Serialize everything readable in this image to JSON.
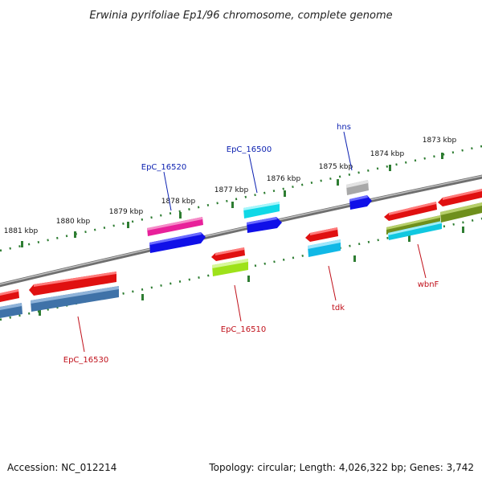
{
  "title": "Erwinia pyrifoliae Ep1/96 chromosome, complete genome",
  "footer": {
    "accession": "Accession: NC_012214",
    "summary": "Topology: circular; Length: 4,026,322 bp; Genes: 3,742"
  },
  "colors": {
    "backbone": "#7a7a7a",
    "ticks": "#2e7d32",
    "label_top": "#0a1fb0",
    "label_bottom": "#c0101a"
  },
  "scale": {
    "ticks": [
      {
        "kbp": 1881,
        "label": "1881 kbp"
      },
      {
        "kbp": 1880,
        "label": "1880 kbp"
      },
      {
        "kbp": 1879,
        "label": "1879 kbp"
      },
      {
        "kbp": 1878,
        "label": "1878 kbp"
      },
      {
        "kbp": 1877,
        "label": "1877 kbp"
      },
      {
        "kbp": 1876,
        "label": "1876 kbp"
      },
      {
        "kbp": 1875,
        "label": "1875 kbp"
      },
      {
        "kbp": 1874,
        "label": "1874 kbp"
      },
      {
        "kbp": 1873,
        "label": "1873 kbp"
      }
    ]
  },
  "gene_labels": [
    {
      "name": "EpC_16520",
      "strand": "top"
    },
    {
      "name": "EpC_16500",
      "strand": "top"
    },
    {
      "name": "hns",
      "strand": "top"
    },
    {
      "name": "EpC_16530",
      "strand": "bottom"
    },
    {
      "name": "EpC_16510",
      "strand": "bottom"
    },
    {
      "name": "tdk",
      "strand": "bottom"
    },
    {
      "name": "wbnF",
      "strand": "bottom"
    }
  ]
}
